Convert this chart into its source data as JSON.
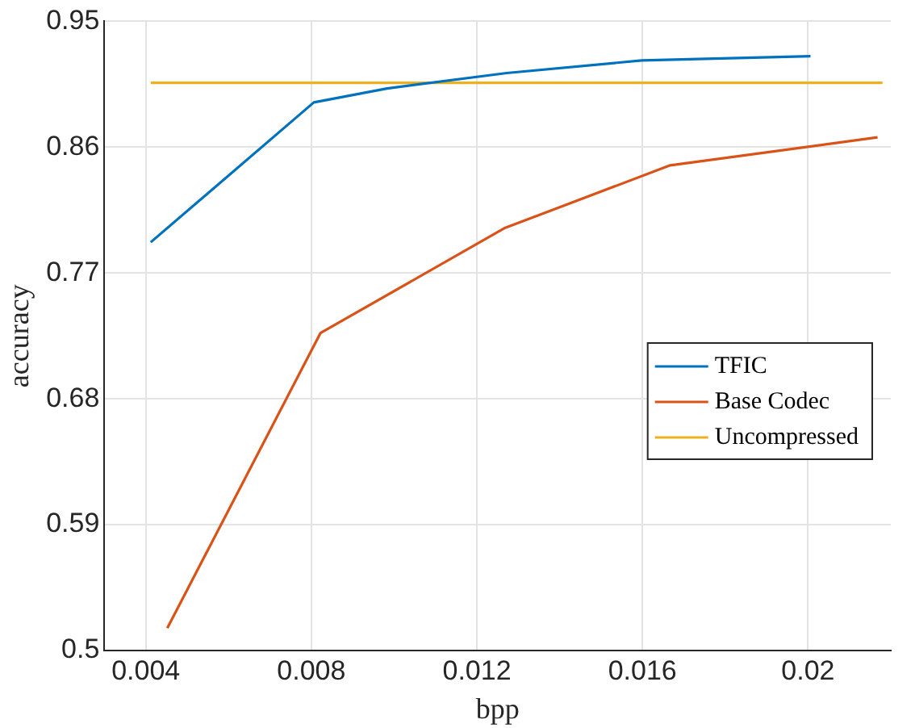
{
  "chart_data": {
    "type": "line",
    "xlabel": "bpp",
    "ylabel": "accuracy",
    "xlim": [
      0.003,
      0.022
    ],
    "xticks": [
      0.004,
      0.008,
      0.012,
      0.016,
      0.02
    ],
    "ylim": [
      0.5,
      0.95
    ],
    "yticks": [
      0.5,
      0.59,
      0.68,
      0.77,
      0.86,
      0.95
    ],
    "grid": true,
    "legend": "right",
    "marker": "none",
    "line_style": "solid",
    "series": [
      {
        "name": "TFIC",
        "color": "#0072bd",
        "x": [
          0.00412,
          0.00806,
          0.00983,
          0.01272,
          0.01598,
          0.02006
        ],
        "values": [
          0.792,
          0.892,
          0.902,
          0.913,
          0.922,
          0.925
        ]
      },
      {
        "name": "Base Codec",
        "color": "#d95319",
        "x": [
          0.00452,
          0.00822,
          0.01266,
          0.01667,
          0.02168
        ],
        "values": [
          0.516,
          0.727,
          0.802,
          0.847,
          0.867
        ]
      },
      {
        "name": "Uncompressed",
        "color": "#edb120",
        "x": [
          0.00412,
          0.0218
        ],
        "values": [
          0.906,
          0.906
        ]
      }
    ]
  }
}
